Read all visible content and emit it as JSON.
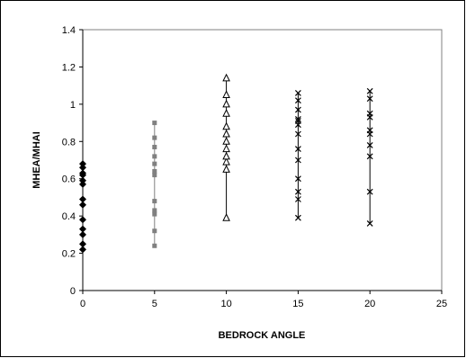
{
  "chart_data": {
    "type": "scatter",
    "xlabel": "BEDROCK ANGLE",
    "ylabel": "MHEA/MHAI",
    "xlim": [
      0,
      25
    ],
    "ylim": [
      0,
      1.4
    ],
    "x_ticks": [
      "0",
      "5",
      "10",
      "15",
      "20",
      "25"
    ],
    "y_ticks": [
      "0",
      "0.2",
      "0.4",
      "0.6",
      "0.8",
      "1",
      "1.2",
      "1.4"
    ],
    "grid": false,
    "legend": "none",
    "series": [
      {
        "x": 0,
        "marker": "diamond",
        "color": "#000000",
        "values": [
          0.22,
          0.25,
          0.3,
          0.33,
          0.38,
          0.46,
          0.49,
          0.57,
          0.59,
          0.62,
          0.63,
          0.66,
          0.68
        ]
      },
      {
        "x": 5,
        "marker": "square",
        "color": "#808080",
        "values": [
          0.24,
          0.32,
          0.41,
          0.43,
          0.48,
          0.62,
          0.64,
          0.68,
          0.72,
          0.77,
          0.82,
          0.9
        ]
      },
      {
        "x": 10,
        "marker": "triangle",
        "color": "#000000",
        "values": [
          0.39,
          0.65,
          0.69,
          0.72,
          0.76,
          0.8,
          0.84,
          0.88,
          0.95,
          1.0,
          1.05,
          1.14
        ]
      },
      {
        "x": 15,
        "marker": "x",
        "color": "#000000",
        "values": [
          0.39,
          0.49,
          0.53,
          0.6,
          0.7,
          0.76,
          0.84,
          0.89,
          0.91,
          0.92,
          0.97,
          1.02,
          1.06
        ]
      },
      {
        "x": 20,
        "marker": "x",
        "color": "#000000",
        "values": [
          0.36,
          0.53,
          0.72,
          0.78,
          0.84,
          0.86,
          0.93,
          0.95,
          1.03,
          1.07
        ]
      }
    ]
  }
}
